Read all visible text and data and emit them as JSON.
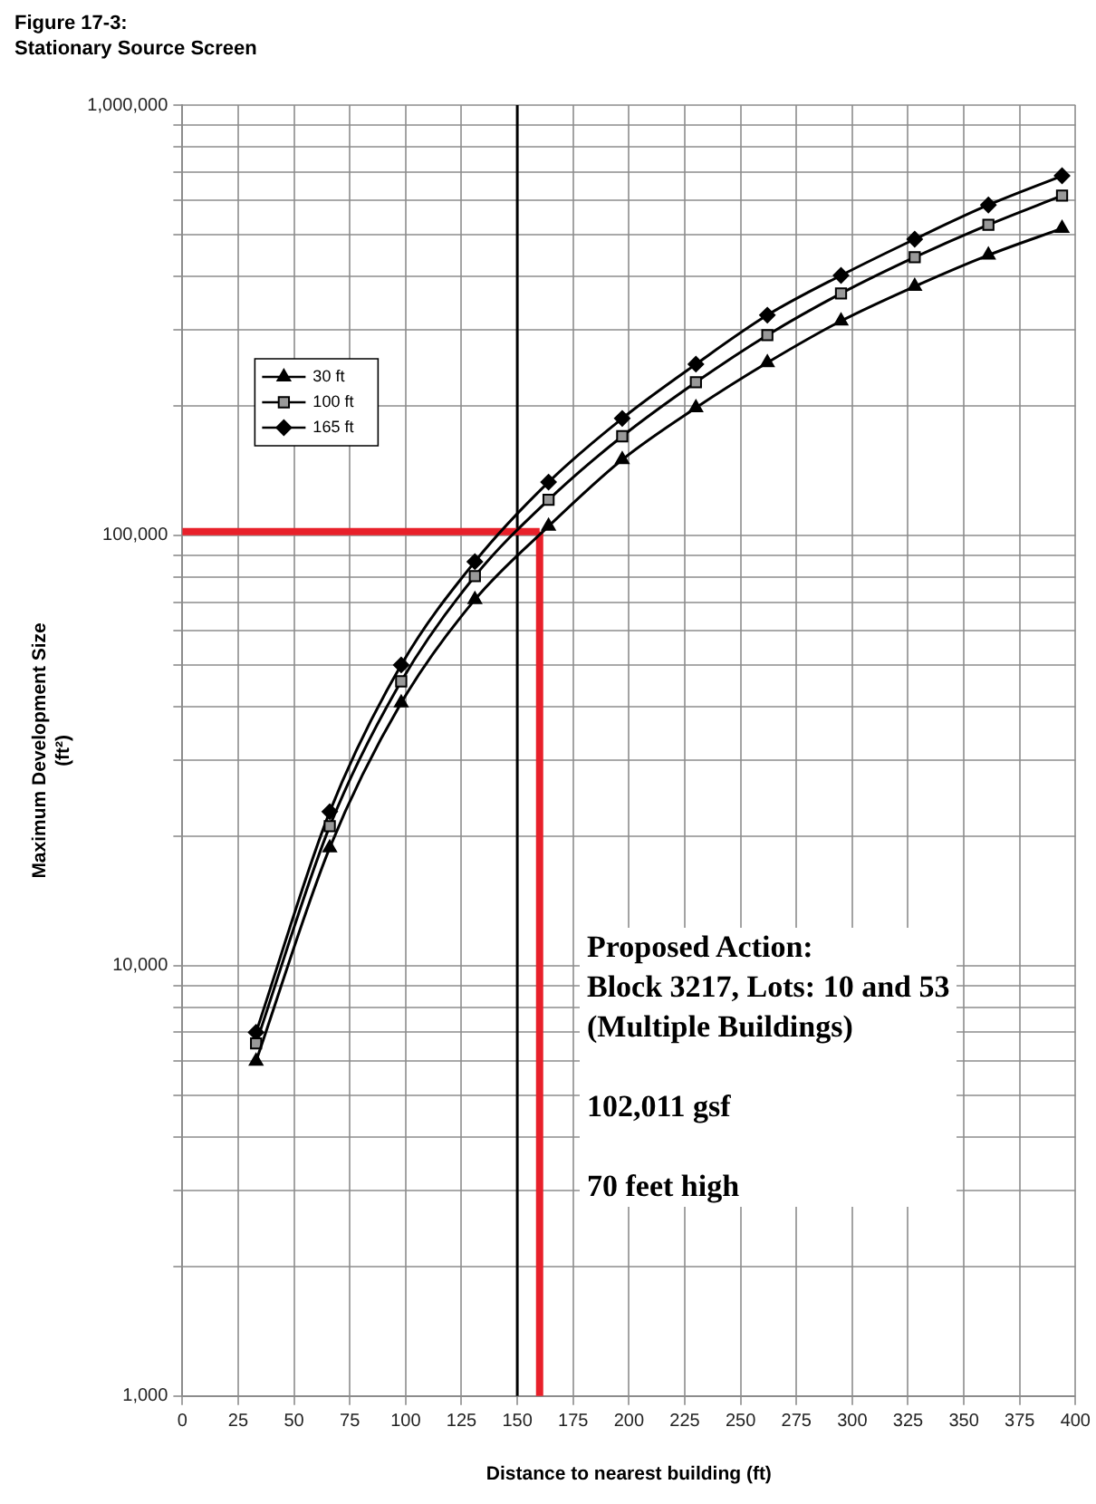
{
  "chart_data": {
    "type": "line",
    "title": "Figure 17-3:",
    "subtitle": "Stationary Source Screen",
    "xlabel": "Distance to nearest building (ft)",
    "ylabel": "Maximum Development Size\n(ft²)",
    "x": [
      33,
      66,
      98,
      131,
      164,
      197,
      230,
      262,
      295,
      328,
      361,
      394
    ],
    "series": [
      {
        "name": "30 ft",
        "color": "#000000",
        "marker": "triangle",
        "values": [
          6000,
          18800,
          40800,
          70900,
          105000,
          150000,
          198000,
          252000,
          315000,
          379000,
          448000,
          517000
        ]
      },
      {
        "name": "100 ft",
        "color": "#000000",
        "marker": "square",
        "values": [
          6600,
          21100,
          45800,
          80400,
          121000,
          170000,
          227000,
          292000,
          365000,
          443000,
          527000,
          616000
        ]
      },
      {
        "name": "165 ft",
        "color": "#000000",
        "marker": "diamond",
        "values": [
          7000,
          22800,
          50000,
          86900,
          133000,
          187000,
          250000,
          325000,
          402000,
          488000,
          586000,
          685000
        ]
      }
    ],
    "ref_lines": [
      {
        "axis": "x",
        "value": 150,
        "color": "#000000"
      },
      {
        "axis": "y",
        "value": 102011,
        "color": "#e8202a"
      },
      {
        "axis": "x",
        "value": 160,
        "color": "#e8202a"
      }
    ],
    "annotations": [
      "Proposed Action:\nBlock 3217, Lots: 10 and 53\n(Multiple Buildings)",
      "102,011 gsf",
      "70 feet high"
    ],
    "log": "y",
    "grid": true,
    "legend": "top left",
    "xlim": [
      0,
      400
    ],
    "xticks": [
      0,
      25,
      50,
      75,
      100,
      125,
      150,
      175,
      200,
      225,
      250,
      275,
      300,
      325,
      350,
      375,
      400
    ],
    "ylim": [
      1000,
      1000000
    ],
    "yticks": [
      {
        "value": 1000,
        "label": "1,000"
      },
      {
        "value": 2000,
        "label": null
      },
      {
        "value": 3000,
        "label": null
      },
      {
        "value": 4000,
        "label": null
      },
      {
        "value": 5000,
        "label": null
      },
      {
        "value": 6000,
        "label": null
      },
      {
        "value": 7000,
        "label": null
      },
      {
        "value": 8000,
        "label": null
      },
      {
        "value": 9000,
        "label": null
      },
      {
        "value": 10000,
        "label": "10,000"
      },
      {
        "value": 20000,
        "label": null
      },
      {
        "value": 30000,
        "label": null
      },
      {
        "value": 40000,
        "label": null
      },
      {
        "value": 50000,
        "label": null
      },
      {
        "value": 60000,
        "label": null
      },
      {
        "value": 70000,
        "label": null
      },
      {
        "value": 80000,
        "label": null
      },
      {
        "value": 90000,
        "label": null
      },
      {
        "value": 100000,
        "label": "100,000"
      },
      {
        "value": 200000,
        "label": null
      },
      {
        "value": 300000,
        "label": null
      },
      {
        "value": 400000,
        "label": null
      },
      {
        "value": 500000,
        "label": null
      },
      {
        "value": 600000,
        "label": null
      },
      {
        "value": 700000,
        "label": null
      },
      {
        "value": 800000,
        "label": null
      },
      {
        "value": 900000,
        "label": null
      },
      {
        "value": 1000000,
        "label": "1,000,000"
      }
    ]
  }
}
